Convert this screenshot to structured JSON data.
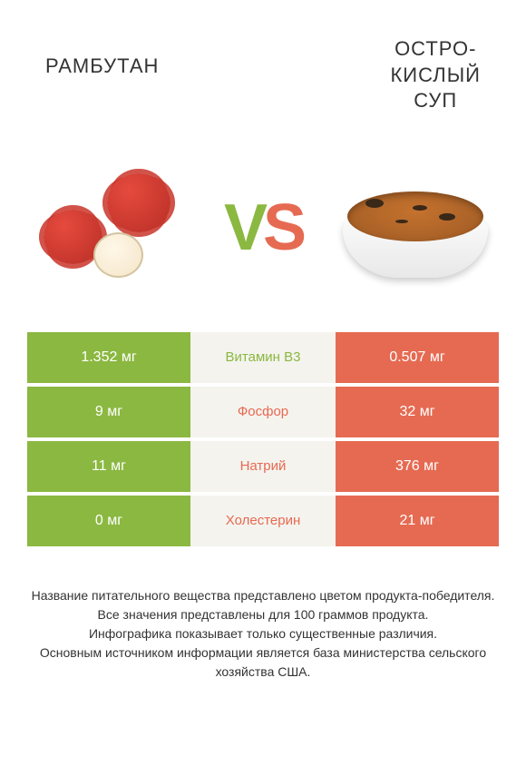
{
  "colors": {
    "green": "#8bb841",
    "orange": "#e66a52",
    "mid_bg": "#f4f3ee",
    "text_dark": "#333333",
    "white": "#ffffff"
  },
  "header": {
    "left_title": "РАМБУТАН",
    "right_title_line1": "ОСТРО-",
    "right_title_line2": "КИСЛЫЙ",
    "right_title_line3": "СУП"
  },
  "vs": {
    "v": "V",
    "s": "S"
  },
  "rows": [
    {
      "label": "Витамин B3",
      "left": "1.352 мг",
      "right": "0.507 мг",
      "winner": "left"
    },
    {
      "label": "Фосфор",
      "left": "9 мг",
      "right": "32 мг",
      "winner": "right"
    },
    {
      "label": "Натрий",
      "left": "11 мг",
      "right": "376 мг",
      "winner": "right"
    },
    {
      "label": "Холестерин",
      "left": "0 мг",
      "right": "21 мг",
      "winner": "right"
    }
  ],
  "footer": {
    "l1": "Название питательного вещества представлено цветом продукта-победителя.",
    "l2": "Все значения представлены для 100 граммов продукта.",
    "l3": "Инфографика показывает только существенные различия.",
    "l4": "Основным источником информации является база министерства сельского хозяйства США."
  }
}
